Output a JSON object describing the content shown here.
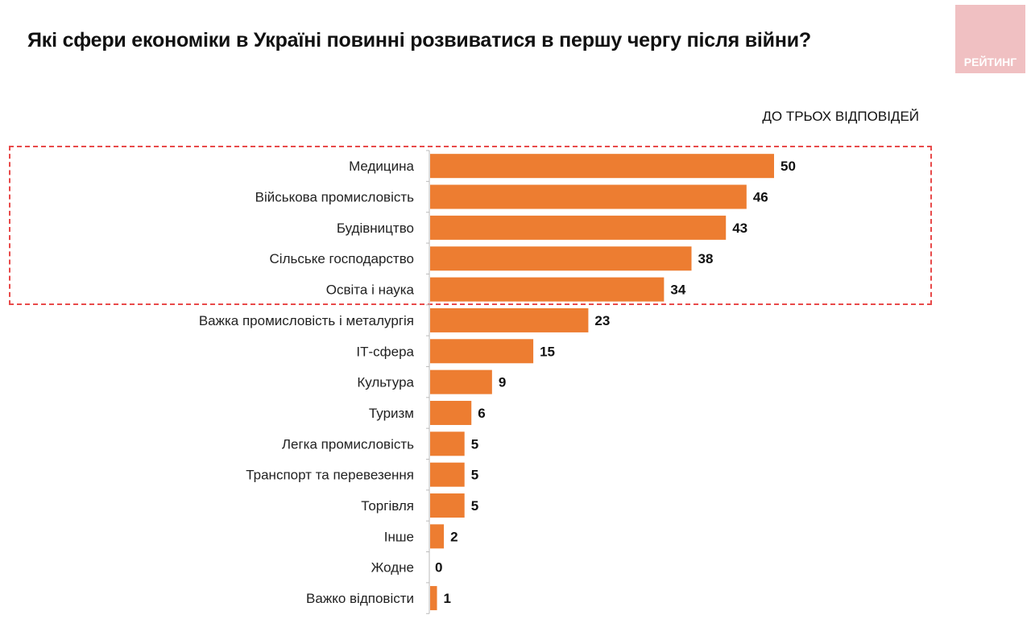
{
  "title": "Які сфери економіки в Україні повинні розвиватися в першу чергу після війни?",
  "logo_text": "РЕЙТИНГ",
  "chart_data": {
    "type": "bar",
    "orientation": "horizontal",
    "title": "Які сфери економіки в Україні повинні розвиватися в першу чергу після війни?",
    "subtitle": "ДО ТРЬОХ ВІДПОВІДЕЙ",
    "categories": [
      "Медицина",
      "Військова промисловість",
      "Будівництво",
      "Сільське господарство",
      "Освіта і наука",
      "Важка промисловість і металургія",
      "ІТ-сфера",
      "Культура",
      "Туризм",
      "Легка промисловість",
      "Транспорт та перевезення",
      "Торгівля",
      "Інше",
      "Жодне",
      "Важко відповісти"
    ],
    "values": [
      50,
      46,
      43,
      38,
      34,
      23,
      15,
      9,
      6,
      5,
      5,
      5,
      2,
      0,
      1
    ],
    "highlighted_top": 5,
    "xlim": [
      0,
      50
    ],
    "bar_color": "#ed7d31",
    "highlight_color": "#e84a4a"
  }
}
